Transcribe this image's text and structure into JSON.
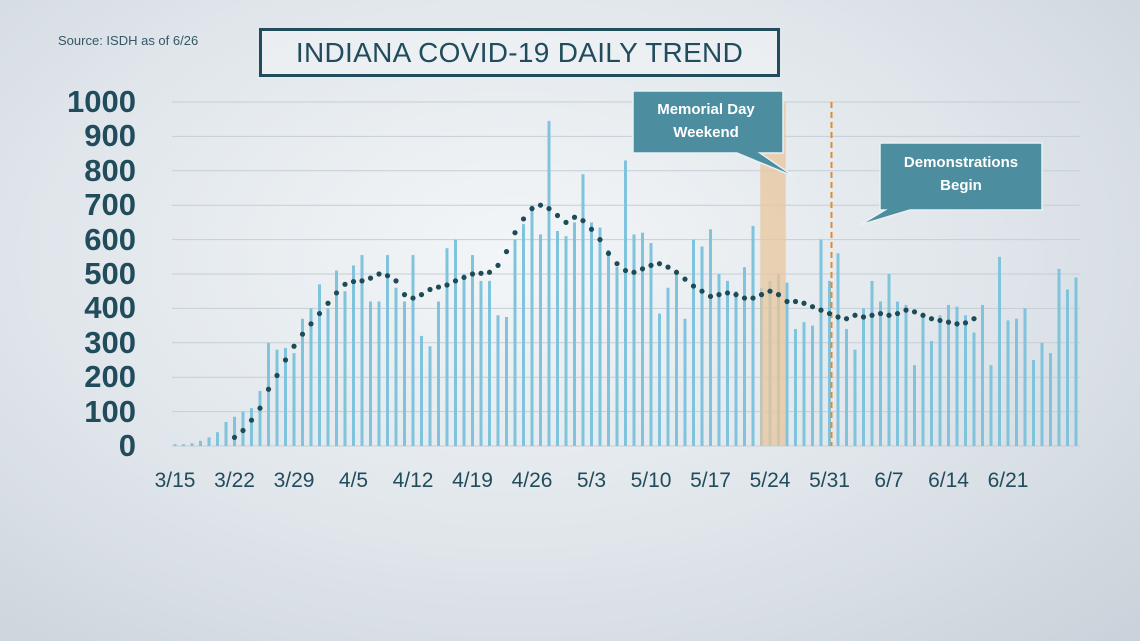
{
  "source": "Source: ISDH as of 6/26",
  "title": "INDIANA COVID-19 DAILY TREND",
  "colors": {
    "bar": "#7fc3dc",
    "trend": "#1d4b56",
    "text": "#214c5c",
    "callout": "#4d8da0",
    "memorial_band": "#e8c59c",
    "demonstrations_line": "#e58a2c"
  },
  "chart_data": {
    "type": "bar",
    "title": "INDIANA COVID-19 DAILY TREND",
    "xlabel": "",
    "ylabel": "",
    "ylim": [
      0,
      1000
    ],
    "yticks": [
      0,
      100,
      200,
      300,
      400,
      500,
      600,
      700,
      800,
      900,
      1000
    ],
    "grid": true,
    "x_start": "3/15",
    "x_tick_labels": [
      "3/15",
      "3/22",
      "3/29",
      "4/5",
      "4/12",
      "4/19",
      "4/26",
      "5/3",
      "5/10",
      "5/17",
      "5/24",
      "5/31",
      "6/7",
      "6/14",
      "6/21"
    ],
    "series": [
      {
        "type": "bar",
        "values": [
          5,
          5,
          8,
          15,
          25,
          40,
          70,
          85,
          100,
          110,
          160,
          300,
          280,
          285,
          270,
          370,
          400,
          470,
          400,
          510,
          450,
          525,
          555,
          420,
          420,
          555,
          460,
          420,
          555,
          320,
          290,
          420,
          575,
          600,
          500,
          555,
          480,
          480,
          380,
          375,
          600,
          645,
          700,
          615,
          945,
          625,
          610,
          650,
          790,
          650,
          635,
          570,
          520,
          830,
          615,
          620,
          590,
          385,
          460,
          505,
          370,
          600,
          580,
          630,
          500,
          480,
          450,
          520,
          640,
          460,
          480,
          500,
          475,
          340,
          360,
          350,
          600,
          480,
          560,
          340,
          280,
          400,
          480,
          420,
          500,
          420,
          410,
          235,
          380,
          305,
          380,
          410,
          405,
          380,
          330,
          410,
          235,
          550,
          365,
          370,
          400,
          250,
          300,
          270,
          515,
          455,
          490
        ]
      },
      {
        "type": "line",
        "style": "dotted",
        "values": [
          null,
          null,
          null,
          null,
          null,
          null,
          null,
          25,
          45,
          75,
          110,
          165,
          205,
          250,
          290,
          325,
          355,
          385,
          415,
          445,
          470,
          478,
          480,
          488,
          500,
          495,
          480,
          440,
          430,
          440,
          455,
          462,
          468,
          480,
          490,
          500,
          502,
          505,
          525,
          565,
          620,
          660,
          690,
          700,
          690,
          670,
          650,
          665,
          655,
          630,
          600,
          560,
          530,
          510,
          505,
          515,
          525,
          530,
          520,
          505,
          485,
          465,
          450,
          435,
          440,
          445,
          440,
          430,
          430,
          440,
          450,
          440,
          420,
          420,
          415,
          405,
          395,
          385,
          375,
          370,
          380,
          375,
          380,
          385,
          380,
          385,
          395,
          390,
          380,
          370,
          365,
          360,
          355,
          358,
          370
        ]
      }
    ],
    "annotations": [
      {
        "label": "Memorial Day Weekend",
        "type": "band",
        "x_from": "5/23",
        "x_to": "5/25"
      },
      {
        "label": "Demonstrations Begin",
        "type": "vline",
        "x": "5/31"
      }
    ]
  }
}
